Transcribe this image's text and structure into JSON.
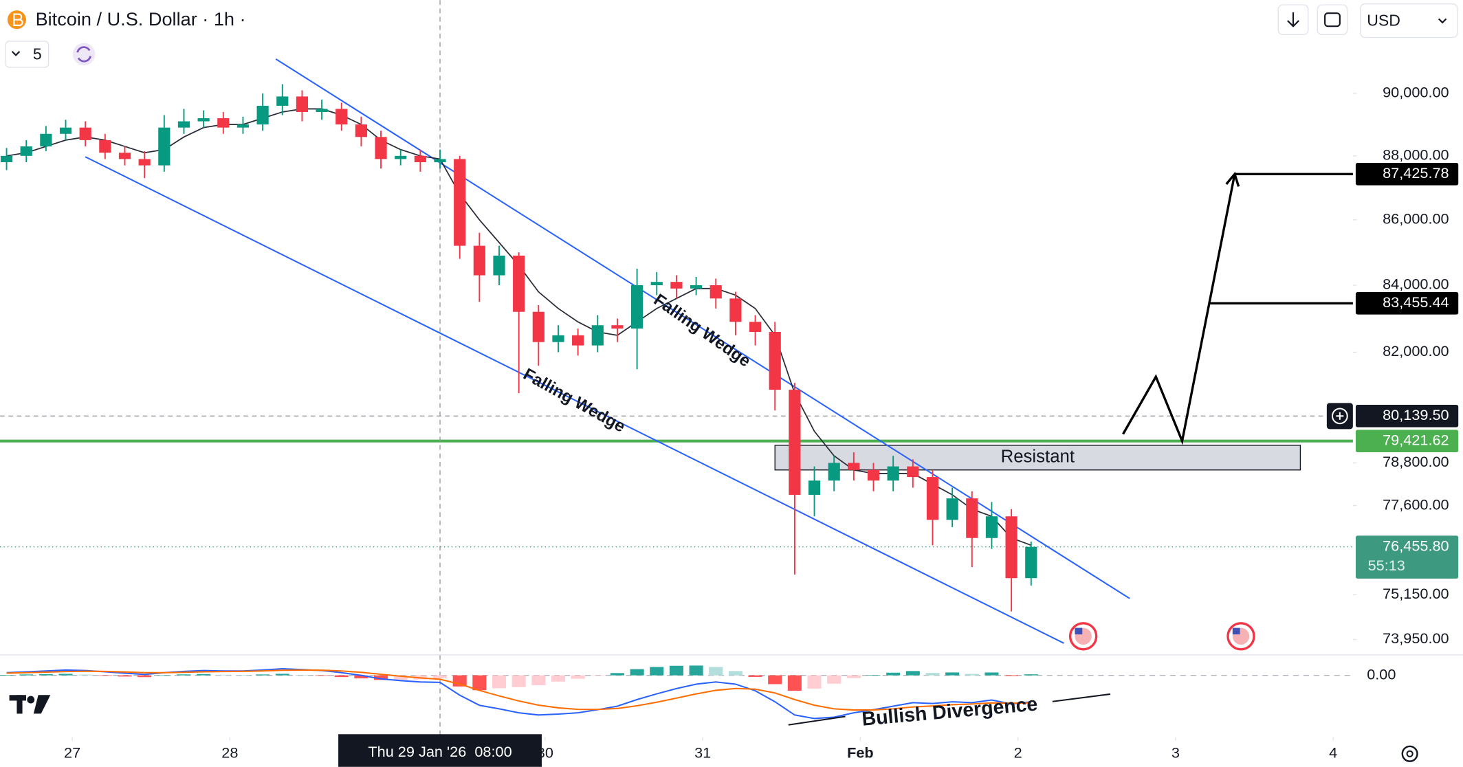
{
  "header": {
    "title": "Bitcoin / U.S. Dollar · 1h ·",
    "interval": "5",
    "currency": "USD"
  },
  "chart_data": {
    "type": "candlestick",
    "x": [
      -10,
      -7,
      -4,
      -1,
      2,
      5,
      8,
      11,
      14,
      17,
      20,
      23,
      26,
      29,
      32,
      35,
      38,
      41,
      44,
      47,
      50,
      53,
      56,
      59,
      62,
      65,
      68,
      71,
      74,
      77,
      80,
      83,
      86,
      89,
      92,
      95,
      98,
      101,
      104,
      107,
      110,
      113,
      116,
      119,
      122,
      125,
      128,
      131,
      134,
      137,
      140,
      143,
      146
    ],
    "open": [
      87800,
      88000,
      88300,
      88700,
      88900,
      88500,
      88100,
      87900,
      87700,
      88900,
      89100,
      89200,
      88900,
      89000,
      89600,
      89900,
      89400,
      89500,
      89000,
      88600,
      87900,
      88000,
      87800,
      87900,
      85200,
      84300,
      84900,
      83200,
      82300,
      82500,
      82200,
      82800,
      82700,
      84000,
      84100,
      83900,
      84000,
      83600,
      82900,
      82600,
      80900,
      77900,
      78300,
      78800,
      78600,
      78300,
      78700,
      78400,
      77200,
      77800,
      76700,
      77300,
      75600
    ],
    "high": [
      88250,
      88500,
      88950,
      89150,
      89100,
      88700,
      88300,
      88150,
      89300,
      89500,
      89450,
      89400,
      89250,
      90000,
      90300,
      90100,
      89800,
      89700,
      89250,
      88800,
      88200,
      88200,
      88200,
      88000,
      85600,
      85200,
      85000,
      83400,
      82800,
      82700,
      83100,
      83000,
      84500,
      84400,
      84300,
      84250,
      84200,
      83800,
      83100,
      82900,
      81100,
      78700,
      79000,
      79100,
      78800,
      79000,
      78900,
      78600,
      78100,
      78000,
      77700,
      77500,
      76600
    ],
    "low": [
      87550,
      87800,
      88150,
      88500,
      88300,
      87900,
      87700,
      87300,
      87500,
      88700,
      88900,
      88700,
      88700,
      88800,
      89300,
      89100,
      89150,
      88800,
      88300,
      87600,
      87700,
      87500,
      87600,
      84800,
      83500,
      84000,
      80800,
      81600,
      82000,
      81900,
      82000,
      82300,
      81500,
      83700,
      83600,
      83700,
      83300,
      82500,
      82200,
      80300,
      75700,
      77300,
      78000,
      78300,
      78000,
      78000,
      78100,
      76500,
      77000,
      75900,
      76400,
      74700,
      75400
    ],
    "close": [
      88000,
      88300,
      88700,
      88900,
      88500,
      88100,
      87900,
      87700,
      88900,
      89100,
      89200,
      88900,
      89000,
      89600,
      89900,
      89400,
      89500,
      89000,
      88600,
      87900,
      88000,
      87800,
      87900,
      85200,
      84300,
      84900,
      83200,
      82300,
      82500,
      82200,
      82800,
      82700,
      84000,
      84100,
      83900,
      84000,
      83600,
      82900,
      82600,
      80900,
      77900,
      78300,
      78800,
      78600,
      78300,
      78700,
      78400,
      77200,
      77800,
      76700,
      77300,
      75600,
      76455.8
    ],
    "up_color": "#089981",
    "down_color": "#f23645",
    "ma": {
      "color": "#2a2e39",
      "values": [
        88000,
        88100,
        88300,
        88500,
        88600,
        88500,
        88300,
        88100,
        88200,
        88600,
        88900,
        89000,
        89000,
        89200,
        89400,
        89500,
        89500,
        89300,
        89000,
        88500,
        88200,
        88000,
        87900,
        86800,
        86000,
        85300,
        84600,
        83800,
        83300,
        82900,
        82600,
        82500,
        82900,
        83300,
        83600,
        83900,
        83900,
        83700,
        83300,
        82500,
        80800,
        79700,
        79000,
        78600,
        78500,
        78500,
        78500,
        78200,
        77900,
        77500,
        77300,
        76700,
        76500
      ]
    },
    "log_scale": true,
    "xlim": [
      -11,
      195
    ],
    "xticks": [
      {
        "value": 0,
        "label": "27"
      },
      {
        "value": 24,
        "label": "28"
      },
      {
        "value": 72,
        "label": "30"
      },
      {
        "value": 96,
        "label": "31"
      },
      {
        "value": 120,
        "label": "Feb"
      },
      {
        "value": 144,
        "label": "2"
      },
      {
        "value": 168,
        "label": "3"
      },
      {
        "value": 192,
        "label": "4"
      }
    ],
    "ylim": [
      73590,
      93070
    ],
    "yticks": [
      {
        "value": 90000,
        "label": "90,000.00"
      },
      {
        "value": 88000,
        "label": "88,000.00"
      },
      {
        "value": 86000,
        "label": "86,000.00"
      },
      {
        "value": 84000,
        "label": "84,000.00"
      },
      {
        "value": 82000,
        "label": "82,000.00"
      },
      {
        "value": 78800,
        "label": "78,800.00"
      },
      {
        "value": 77600,
        "label": "77,600.00"
      },
      {
        "value": 75150,
        "label": "75,150.00"
      },
      {
        "value": 73950,
        "label": "73,950.00"
      }
    ],
    "crosshair": {
      "x": 56,
      "x_label": "Thu 29 Jan '26  08:00",
      "y": 80139.5,
      "y_label": "80,139.50"
    },
    "last_price": {
      "value": 76455.8,
      "label": "76,455.80",
      "countdown": "55:13",
      "color": "#3d9a80"
    },
    "support_line": {
      "value": 79421.62,
      "label": "79,421.62",
      "color": "#4caf50"
    },
    "resistance_zone": {
      "x": [
        107,
        187
      ],
      "y": [
        78600,
        79300
      ],
      "label": "Resistant"
    },
    "wedge": {
      "color": "#2962ff",
      "lines": [
        {
          "x": [
            31,
            161
          ],
          "y": [
            91120,
            75050
          ]
        },
        {
          "x": [
            2,
            151
          ],
          "y": [
            87970,
            73850
          ]
        }
      ],
      "labels": [
        "Falling Wedge",
        "Falling Wedge"
      ]
    },
    "projection": {
      "x": [
        160,
        165,
        169,
        177
      ],
      "y": [
        79620,
        81280,
        79421.62,
        87425.78
      ]
    },
    "targets": [
      {
        "value": 87425.78,
        "label": "87,425.78",
        "x": 177
      },
      {
        "value": 83455.44,
        "label": "83,455.44",
        "x": 173
      }
    ],
    "macd": {
      "ylim": [
        -1400,
        400
      ],
      "yticks": [
        {
          "value": 0,
          "label": "0.00"
        }
      ],
      "macd": {
        "color": "#2962ff",
        "values": [
          60,
          80,
          100,
          120,
          110,
          80,
          50,
          20,
          60,
          90,
          110,
          100,
          100,
          120,
          150,
          130,
          110,
          60,
          0,
          -80,
          -120,
          -150,
          -160,
          -450,
          -680,
          -760,
          -850,
          -900,
          -880,
          -850,
          -780,
          -700,
          -550,
          -420,
          -300,
          -200,
          -150,
          -200,
          -350,
          -600,
          -900,
          -980,
          -950,
          -850,
          -780,
          -700,
          -620,
          -640,
          -600,
          -620,
          -560,
          -650,
          -600
        ]
      },
      "signal": {
        "color": "#ff6d00",
        "values": [
          50,
          60,
          72,
          86,
          93,
          89,
          77,
          60,
          60,
          69,
          81,
          87,
          91,
          100,
          115,
          119,
          116,
          99,
          69,
          24,
          -19,
          -58,
          -89,
          -197,
          -342,
          -467,
          -582,
          -677,
          -738,
          -772,
          -774,
          -752,
          -691,
          -610,
          -517,
          -422,
          -340,
          -298,
          -314,
          -400,
          -550,
          -679,
          -760,
          -787,
          -785,
          -760,
          -718,
          -695,
          -666,
          -652,
          -625,
          -633,
          -623
        ]
      },
      "histogram": [
        10,
        20,
        28,
        34,
        17,
        -9,
        -27,
        -40,
        0,
        21,
        29,
        13,
        9,
        20,
        35,
        11,
        -6,
        -39,
        -69,
        -104,
        -101,
        -92,
        -71,
        -253,
        -338,
        -293,
        -268,
        -223,
        -142,
        -78,
        -6,
        52,
        141,
        190,
        217,
        222,
        190,
        98,
        -36,
        -200,
        -350,
        -301,
        -190,
        -63,
        5,
        60,
        98,
        55,
        66,
        32,
        65,
        -17,
        23
      ],
      "histogram_colors": [
        "#26a69a",
        "#b2dfdb",
        "#ff5252",
        "#ffcdd2"
      ],
      "annotation": "Bullish Divergence"
    }
  }
}
